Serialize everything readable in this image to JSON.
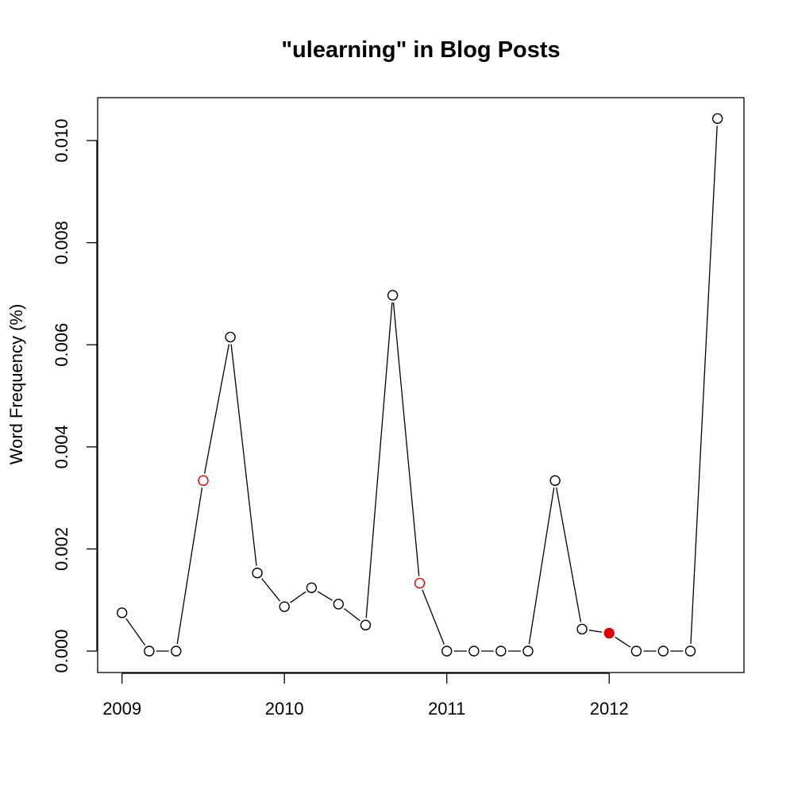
{
  "chart_data": {
    "type": "line",
    "title": "\"ulearning\" in Blog Posts",
    "xlabel": "",
    "ylabel": "Word Frequency (%)",
    "xlim": [
      2008.85,
      2012.83
    ],
    "ylim": [
      -0.00042,
      0.01084
    ],
    "x_ticks": [
      2009,
      2010,
      2011,
      2012
    ],
    "x_tick_labels": [
      "2009",
      "2010",
      "2011",
      "2012"
    ],
    "y_ticks": [
      0.0,
      0.002,
      0.004,
      0.006,
      0.008,
      0.01
    ],
    "y_tick_labels": [
      "0.000",
      "0.002",
      "0.004",
      "0.006",
      "0.008",
      "0.010"
    ],
    "grid": false,
    "legend": "none",
    "series": [
      {
        "x": [
          2009.0,
          2009.167,
          2009.333,
          2009.5,
          2009.667,
          2009.833,
          2010.0,
          2010.167,
          2010.333,
          2010.5,
          2010.667,
          2010.833,
          2011.0,
          2011.167,
          2011.333,
          2011.5,
          2011.667,
          2011.833,
          2012.0,
          2012.167,
          2012.333,
          2012.5,
          2012.667
        ],
        "values": [
          0.00075,
          0.0,
          0.0,
          0.00334,
          0.00615,
          0.00153,
          0.00087,
          0.00124,
          0.00092,
          0.00051,
          0.00697,
          0.00133,
          0.0,
          0.0,
          0.0,
          0.0,
          0.00334,
          0.00043,
          0.00035,
          0.0,
          0.0,
          0.0,
          0.01043
        ],
        "marker_styles": [
          "open",
          "open",
          "open",
          "open-red",
          "open",
          "open",
          "open",
          "open",
          "open",
          "open",
          "open",
          "open-red",
          "open",
          "open",
          "open",
          "open",
          "open",
          "open",
          "filled-red",
          "open",
          "open",
          "open",
          "open"
        ]
      }
    ],
    "colors": {
      "line": "#000000",
      "marker": "#000000",
      "highlight": "#e00000"
    }
  }
}
